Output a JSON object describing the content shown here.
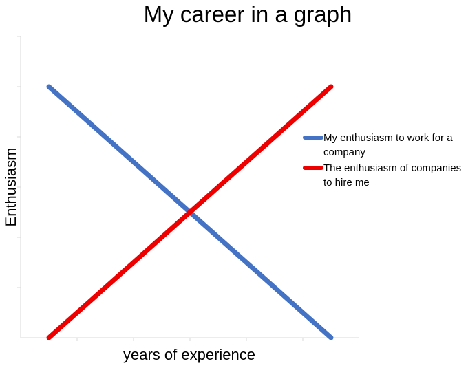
{
  "chart_data": {
    "type": "line",
    "title": "My career in a graph",
    "xlabel": "years of experience",
    "ylabel": "Enthusiasm",
    "x": [
      0,
      5
    ],
    "ylim": [
      0,
      6
    ],
    "xlim": [
      -0.5,
      5.5
    ],
    "grid": false,
    "legend_position": "right",
    "series": [
      {
        "name": "My enthusiasm to work for a company",
        "color": "#4472c4",
        "values": [
          5,
          0
        ]
      },
      {
        "name": "The enthusiasm of companies to hire me",
        "color": "#ee0000",
        "values": [
          0,
          5
        ]
      }
    ]
  }
}
